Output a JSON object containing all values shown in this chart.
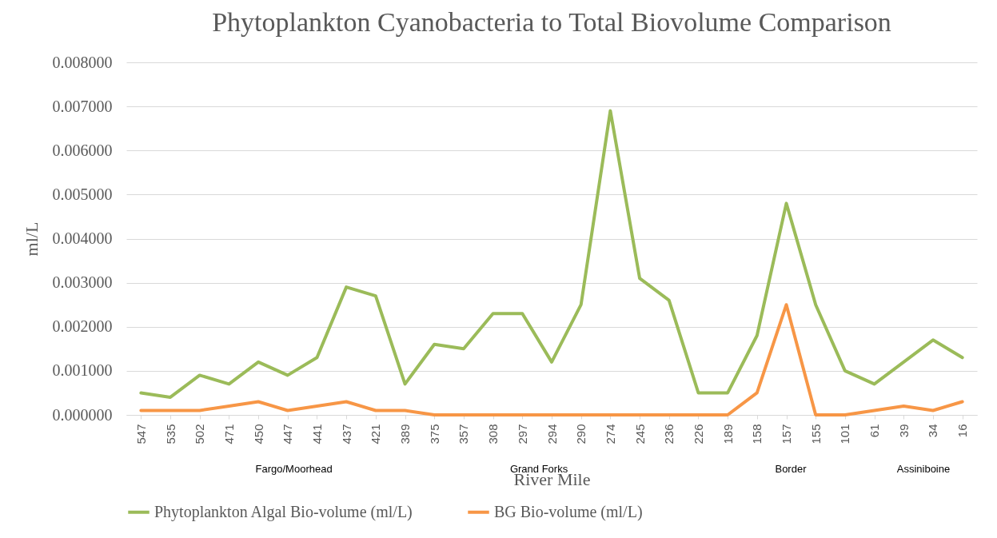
{
  "chart_data": {
    "type": "line",
    "title": "Phytoplankton Cyanobacteria to Total Biovolume Comparison",
    "xlabel": "River Mile",
    "ylabel": "ml/L",
    "categories": [
      "547",
      "535",
      "502",
      "471",
      "450",
      "447",
      "441",
      "437",
      "421",
      "389",
      "375",
      "357",
      "308",
      "297",
      "294",
      "290",
      "274",
      "245",
      "236",
      "226",
      "189",
      "158",
      "157",
      "155",
      "101",
      "61",
      "39",
      "34",
      "16"
    ],
    "series": [
      {
        "name": "Phytoplankton Algal Bio-volume (ml/L)",
        "color": "#9bbb59",
        "values": [
          0.0005,
          0.0004,
          0.0009,
          0.0007,
          0.0012,
          0.0009,
          0.0013,
          0.0029,
          0.0027,
          0.0007,
          0.0016,
          0.0015,
          0.0023,
          0.0023,
          0.0012,
          0.0025,
          0.0069,
          0.0031,
          0.0026,
          0.0005,
          0.0005,
          0.0018,
          0.0048,
          0.0025,
          0.001,
          0.0007,
          0.0012,
          0.0017,
          0.0013
        ]
      },
      {
        "name": "BG Bio-volume (ml/L)",
        "color": "#f79646",
        "values": [
          0.0001,
          0.0001,
          0.0001,
          0.0002,
          0.0003,
          0.0001,
          0.0002,
          0.0003,
          0.0001,
          0.0001,
          0,
          0,
          0,
          0,
          0,
          0,
          0,
          0,
          0,
          0,
          0,
          0.0005,
          0.0025,
          0,
          0,
          0.0001,
          0.0002,
          0.0001,
          0.0003
        ]
      }
    ],
    "ylim": [
      0,
      0.008
    ],
    "yticks": [
      {
        "value": 0,
        "label": "0.000000"
      },
      {
        "value": 0.001,
        "label": "0.001000"
      },
      {
        "value": 0.002,
        "label": "0.002000"
      },
      {
        "value": 0.003,
        "label": "0.003000"
      },
      {
        "value": 0.004,
        "label": "0.004000"
      },
      {
        "value": 0.005,
        "label": "0.005000"
      },
      {
        "value": 0.006,
        "label": "0.006000"
      },
      {
        "value": 0.007,
        "label": "0.007000"
      },
      {
        "value": 0.008,
        "label": "0.008000"
      }
    ],
    "annotations": [
      "Fargo/Moorhead",
      "Grand Forks",
      "Border",
      "Assiniboine"
    ],
    "grid": "y",
    "legend": "bottom",
    "marker": "none",
    "line_style": "solid"
  }
}
